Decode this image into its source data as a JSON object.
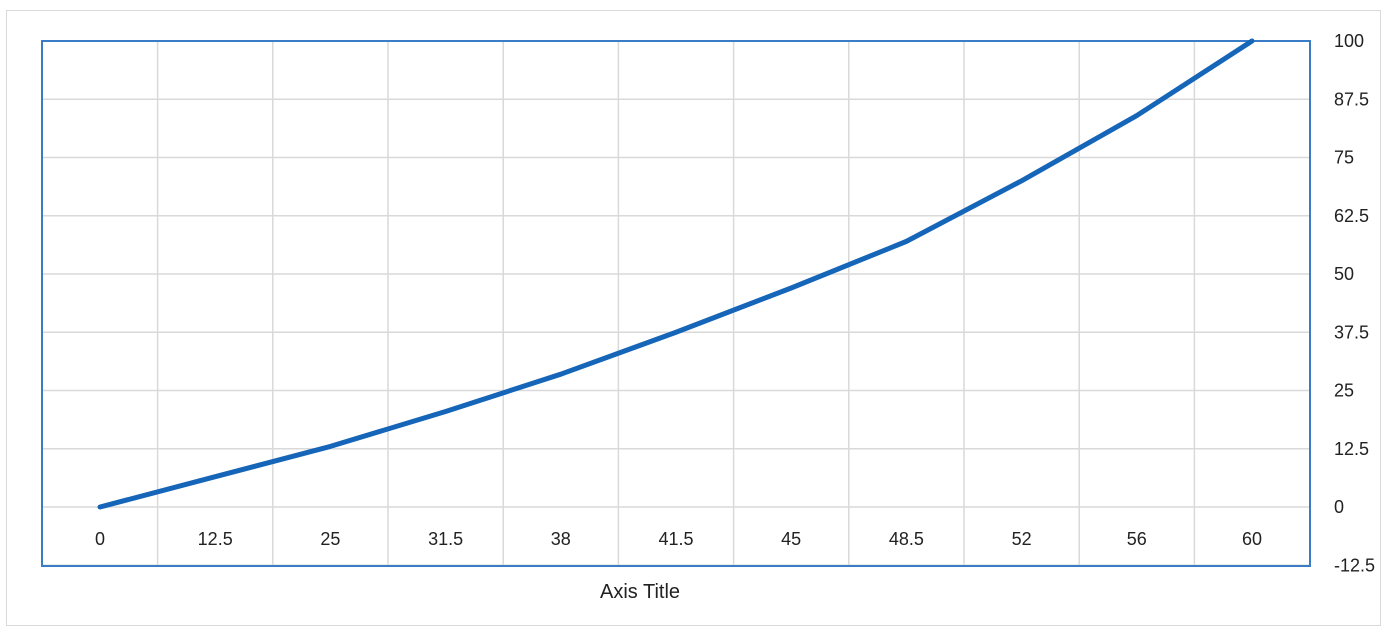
{
  "chart_data": {
    "type": "line",
    "title": "",
    "xlabel": "Axis Title",
    "ylabel": "",
    "categories": [
      "0",
      "12.5",
      "25",
      "31.5",
      "38",
      "41.5",
      "45",
      "48.5",
      "52",
      "56",
      "60"
    ],
    "ylim": [
      -12.5,
      100
    ],
    "yticks": [
      "100",
      "87.5",
      "75",
      "62.5",
      "50",
      "37.5",
      "25",
      "12.5",
      "0",
      "-12.5"
    ],
    "series": [
      {
        "values": [
          0,
          6.5,
          13,
          20.5,
          28.5,
          37.5,
          47,
          57,
          70,
          84,
          100
        ]
      }
    ],
    "grid": true,
    "y_axis_position": "right",
    "colors": {
      "line": "#1565b8",
      "plot_border": "#3a7cc6",
      "grid": "#d9d9d9"
    }
  }
}
